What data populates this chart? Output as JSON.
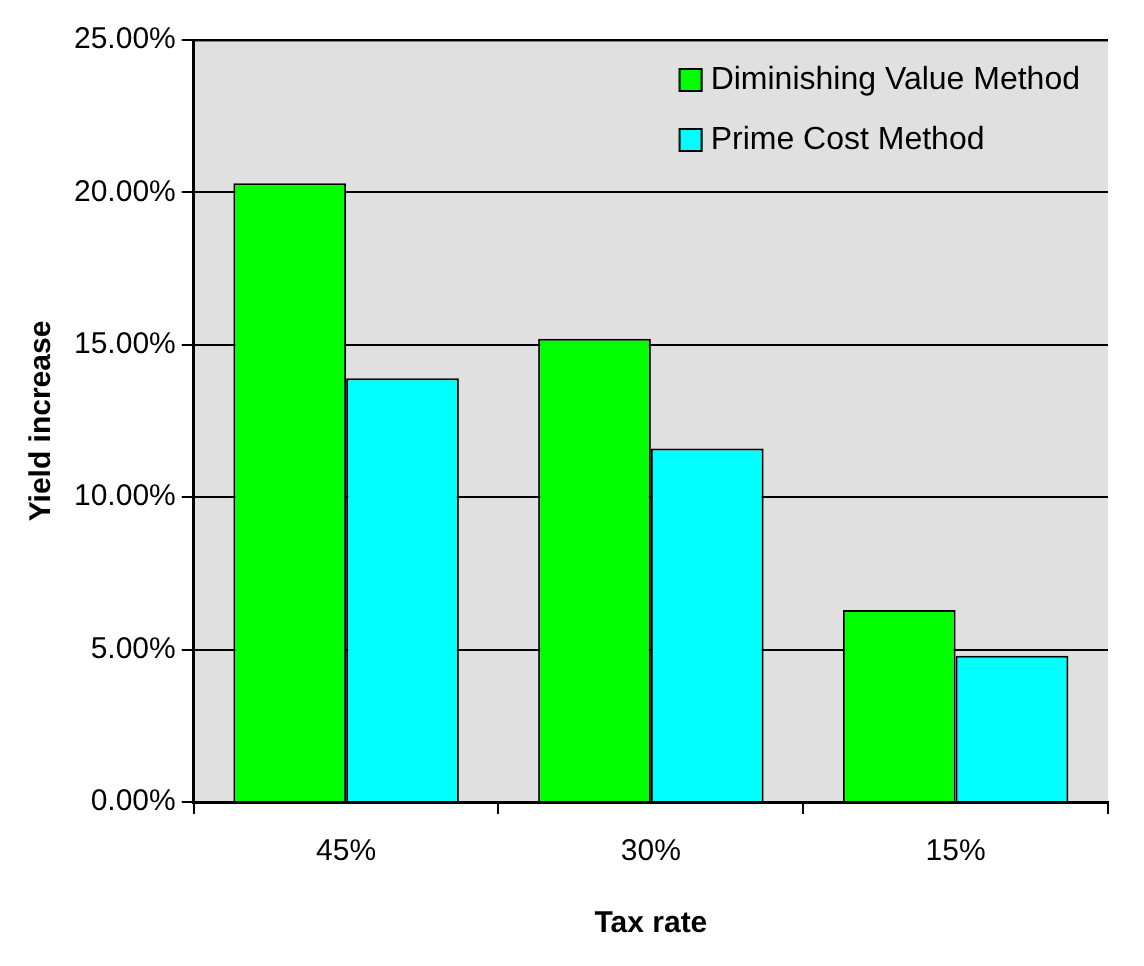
{
  "chart_data": {
    "type": "bar",
    "xlabel": "Tax rate",
    "ylabel": "Yield increase",
    "categories": [
      "45%",
      "30%",
      "15%"
    ],
    "series": [
      {
        "name": "Diminishing Value Method",
        "color": "#00ff00",
        "values": [
          20.3,
          15.2,
          6.3
        ]
      },
      {
        "name": "Prime Cost Method",
        "color": "#00ffff",
        "values": [
          13.9,
          11.6,
          4.8
        ]
      }
    ],
    "ylim": [
      0,
      25
    ],
    "yticks": [
      {
        "value": 0,
        "label": "0.00%"
      },
      {
        "value": 5,
        "label": "5.00%"
      },
      {
        "value": 10,
        "label": "10.00%"
      },
      {
        "value": 15,
        "label": "15.00%"
      },
      {
        "value": 20,
        "label": "20.00%"
      },
      {
        "value": 25,
        "label": "25.00%"
      }
    ],
    "grid": "y",
    "legend": "top right"
  }
}
